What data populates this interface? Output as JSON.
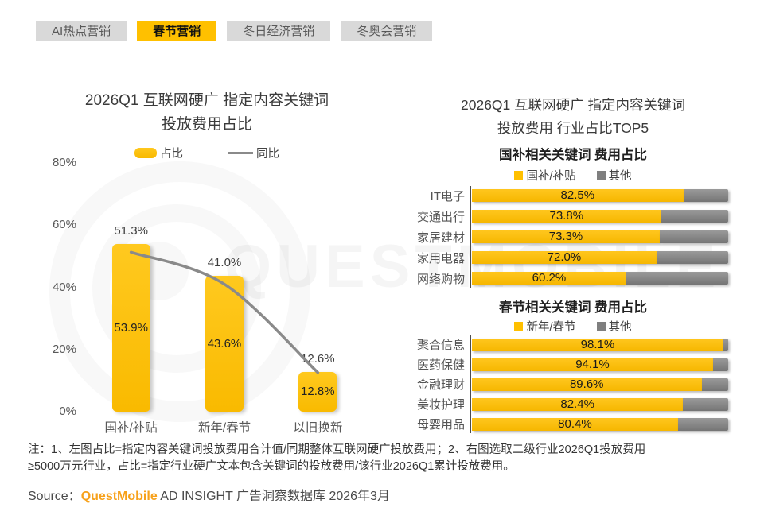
{
  "tabs": {
    "items": [
      {
        "label": "AI热点营销",
        "active": false
      },
      {
        "label": "春节营销",
        "active": true
      },
      {
        "label": "冬日经济营销",
        "active": false
      },
      {
        "label": "冬奥会营销",
        "active": false
      }
    ]
  },
  "watermark": {
    "text": "QUESTMOBILE",
    "logo": "questmobile-q-logo"
  },
  "right_section_title_lines": [
    "2026Q1 互联网硬广 指定内容关键词",
    "投放费用 行业占比TOP5"
  ],
  "chart_data": [
    {
      "type": "bar",
      "title_lines": [
        "2026Q1 互联网硬广 指定内容关键词",
        "投放费用占比"
      ],
      "categories": [
        "国补/补贴",
        "新年/春节",
        "以旧换新"
      ],
      "series": [
        {
          "name": "占比",
          "type": "bar",
          "values": [
            53.9,
            43.6,
            12.8
          ]
        },
        {
          "name": "同比",
          "type": "line",
          "values": [
            51.3,
            41.0,
            12.6
          ]
        }
      ],
      "ylim": [
        0,
        80
      ],
      "yticks": [
        0,
        20,
        40,
        60,
        80
      ],
      "ytick_suffix": "%",
      "grid": false,
      "legend_position": "top"
    },
    {
      "type": "bar",
      "orientation": "horizontal",
      "stacked": true,
      "title": "国补相关关键词 费用占比",
      "legend": [
        "国补/补贴",
        "其他"
      ],
      "categories": [
        "IT电子",
        "交通出行",
        "家居建材",
        "家用电器",
        "网络购物"
      ],
      "values": [
        82.5,
        73.8,
        73.3,
        72.0,
        60.2
      ],
      "xlim": [
        0,
        100
      ]
    },
    {
      "type": "bar",
      "orientation": "horizontal",
      "stacked": true,
      "title": "春节相关关键词 费用占比",
      "legend": [
        "新年/春节",
        "其他"
      ],
      "categories": [
        "聚合信息",
        "医药保健",
        "金融理财",
        "美妆护理",
        "母婴用品"
      ],
      "values": [
        98.1,
        94.1,
        89.6,
        82.4,
        80.4
      ],
      "xlim": [
        0,
        100
      ]
    }
  ],
  "colors": {
    "accent_yellow": "#FFC000",
    "other_gray": "#7f7f7f",
    "line_gray": "#8a8a8a",
    "tab_gray": "#D9D9D9",
    "source_orange": "#F7A11A"
  },
  "note": {
    "line1": "注：1、左图占比=指定内容关键词投放费用合计值/同期整体互联网硬广投放费用；2、右图选取二级行业2026Q1投放费用",
    "line2": "≥5000万元行业，占比=指定行业硬广文本包含关键词的投放费用/该行业2026Q1累计投放费用。"
  },
  "source": {
    "prefix": "Source：",
    "brand": "QuestMobile",
    "suffix": " AD INSIGHT 广告洞察数据库 2026年3月"
  }
}
